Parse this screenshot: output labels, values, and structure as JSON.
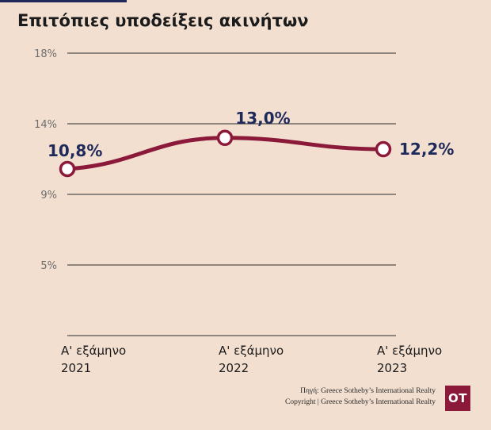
{
  "title": "Επιτόπιες υποδείξεις ακινήτων",
  "footer": {
    "source": "Πηγή: Greece Sotheby’s International Realty",
    "copyright": "Copyright | Greece Sotheby’s International Realty"
  },
  "logo": {
    "text": "OT"
  },
  "colors": {
    "background": "#f2dfd0",
    "line": "#8b1a3a",
    "label": "#1f2a5a",
    "accent_bar": "#1f2a5a"
  },
  "chart_data": {
    "type": "line",
    "categories": [
      [
        "Α' εξάμηνο",
        "2021"
      ],
      [
        "Α' εξάμηνο",
        "2022"
      ],
      [
        "Α' εξάμηνο",
        "2023"
      ]
    ],
    "series": [
      {
        "values": [
          10.8,
          13.0,
          12.2
        ],
        "labels": [
          "10,8%",
          "13,0%",
          "12,2%"
        ]
      }
    ],
    "y_ticks": [
      {
        "value": 18,
        "label": "18%"
      },
      {
        "value": 14,
        "label": "14%"
      },
      {
        "value": 9,
        "label": "9%"
      },
      {
        "value": 5,
        "label": "5%"
      }
    ],
    "ylim": [
      1,
      18
    ],
    "grid": true
  }
}
